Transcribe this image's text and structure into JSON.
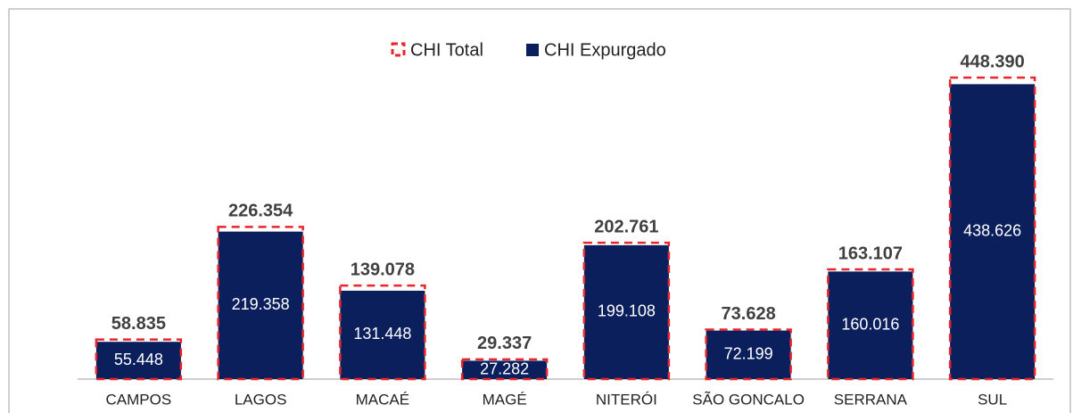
{
  "chart_data": {
    "type": "bar",
    "categories": [
      "CAMPOS",
      "LAGOS",
      "MACAÉ",
      "MAGÉ",
      "NITERÓI",
      "SÃO GONCALO",
      "SERRANA",
      "SUL"
    ],
    "series": [
      {
        "name": "CHI Total",
        "color": "#e8262b",
        "style": "dashed-outline",
        "values": [
          58835,
          226354,
          139078,
          29337,
          202761,
          73628,
          163107,
          448390
        ],
        "value_labels": [
          "58.835",
          "226.354",
          "139.078",
          "29.337",
          "202.761",
          "73.628",
          "163.107",
          "448.390"
        ]
      },
      {
        "name": "CHI Expurgado",
        "color": "#0b1f5c",
        "style": "filled",
        "values": [
          55448,
          219358,
          131448,
          27282,
          199108,
          72199,
          160016,
          438626
        ],
        "value_labels": [
          "55.448",
          "219.358",
          "131.448",
          "27.282",
          "199.108",
          "72.199",
          "160.016",
          "438.626"
        ]
      }
    ],
    "legend": "top"
  }
}
